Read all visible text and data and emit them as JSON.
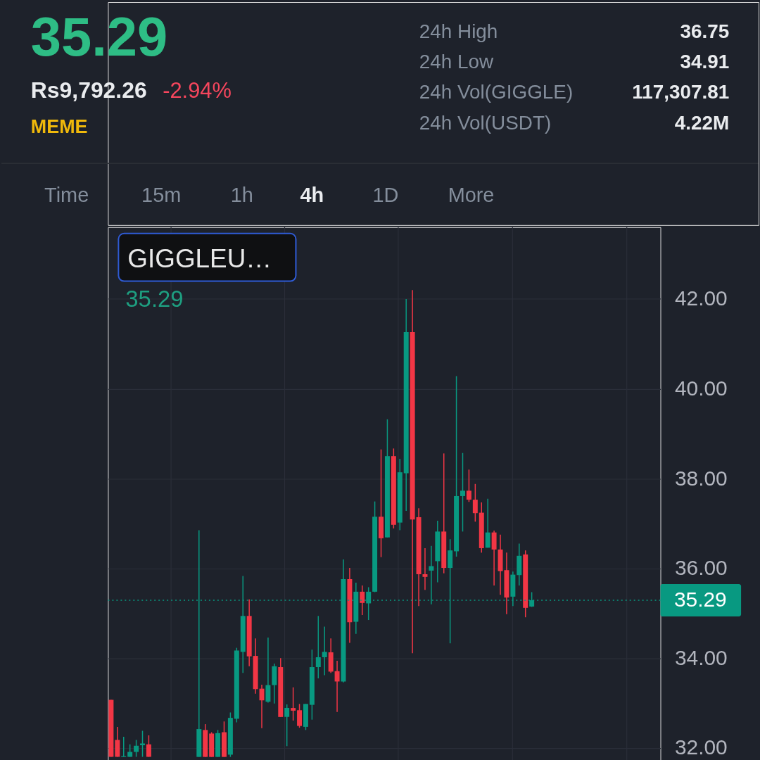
{
  "chart_data": [
    {
      "type": "other",
      "annotations": [
        "35.29",
        "Rs9,792.26",
        "-2.94%",
        "MEME",
        "24h High",
        "36.75",
        "24h Low",
        "34.91",
        "24h Vol(GIGGLE)",
        "117,307.81",
        "24h Vol(USDT)",
        "4.22M",
        "Time",
        "15m",
        "1h",
        "4h",
        "1D",
        "More"
      ]
    },
    {
      "type": "candlestick",
      "title": "GIGGLEU…",
      "annotations": [
        "35.29"
      ],
      "categories": [
        null,
        null,
        null,
        null,
        null,
        null,
        null,
        null,
        null,
        null,
        null,
        null,
        null,
        null,
        null,
        null,
        null,
        null,
        null,
        null,
        null,
        null,
        null,
        null,
        null,
        null,
        null,
        null,
        null,
        null,
        null,
        null,
        null,
        null,
        null,
        null,
        null,
        null,
        null,
        null,
        null,
        null,
        null,
        null,
        null,
        null,
        null,
        null,
        null,
        null,
        null,
        null,
        null,
        null,
        null,
        null,
        null,
        null,
        null,
        null,
        null,
        null,
        null,
        null,
        null,
        null,
        null,
        null,
        null,
        null,
        null,
        null,
        null,
        null,
        null,
        null,
        null,
        null,
        null,
        null,
        null,
        null,
        null,
        null,
        null,
        null,
        null,
        null
      ],
      "ohlc": [
        [
          33.07,
          33.07,
          31.8,
          31.8
        ],
        [
          32.18,
          32.47,
          31.8,
          31.8
        ],
        [
          31.8,
          32.25,
          31.8,
          31.82
        ],
        [
          31.8,
          32.08,
          31.8,
          31.91
        ],
        [
          31.91,
          32.18,
          31.8,
          32.05
        ],
        [
          32.06,
          32.38,
          31.8,
          32.1
        ],
        [
          32.08,
          32.28,
          31.8,
          31.8
        ],
        null,
        null,
        null,
        null,
        null,
        null,
        null,
        [
          31.8,
          36.85,
          31.8,
          32.42
        ],
        [
          32.4,
          32.53,
          31.8,
          31.8
        ],
        [
          32.32,
          32.35,
          31.8,
          31.8
        ],
        [
          31.8,
          32.4,
          31.8,
          32.33
        ],
        [
          32.35,
          32.59,
          31.8,
          31.8
        ],
        [
          31.85,
          32.79,
          31.8,
          32.67
        ],
        [
          32.65,
          34.23,
          32.57,
          34.17
        ],
        [
          34.14,
          35.83,
          33.67,
          34.94
        ],
        [
          34.94,
          35.31,
          33.82,
          34.04
        ],
        [
          34.05,
          34.44,
          33.21,
          33.31
        ],
        [
          33.32,
          33.41,
          32.44,
          33.06
        ],
        [
          33.03,
          34.46,
          33.01,
          33.4
        ],
        [
          33.4,
          33.88,
          32.99,
          33.82
        ],
        [
          33.8,
          34.0,
          32.69,
          32.69
        ],
        [
          32.69,
          32.97,
          32.04,
          32.89
        ],
        [
          32.89,
          33.35,
          32.61,
          32.83
        ],
        [
          32.84,
          32.98,
          32.45,
          32.49
        ],
        [
          32.47,
          32.98,
          32.4,
          32.98
        ],
        [
          32.96,
          34.19,
          32.63,
          33.8
        ],
        [
          33.8,
          34.94,
          33.55,
          34.02
        ],
        [
          34.02,
          34.7,
          33.62,
          34.14
        ],
        [
          34.13,
          34.44,
          33.67,
          33.7
        ],
        [
          33.71,
          33.94,
          32.8,
          33.48
        ],
        [
          33.48,
          36.2,
          33.46,
          35.76
        ],
        [
          35.76,
          36.01,
          34.34,
          34.8
        ],
        [
          34.81,
          35.68,
          34.54,
          35.48
        ],
        [
          35.48,
          35.62,
          34.96,
          35.23
        ],
        [
          35.22,
          35.58,
          34.85,
          35.48
        ],
        [
          35.48,
          37.49,
          35.47,
          37.15
        ],
        [
          37.15,
          38.65,
          36.25,
          36.67
        ],
        [
          36.69,
          39.32,
          36.69,
          38.5
        ],
        [
          38.5,
          38.67,
          36.89,
          36.97
        ],
        [
          37.02,
          38.44,
          36.85,
          38.14
        ],
        [
          38.12,
          42.0,
          37.28,
          41.26
        ],
        [
          41.26,
          42.2,
          34.11,
          37.09
        ],
        [
          37.14,
          37.34,
          35.16,
          35.87
        ],
        [
          35.87,
          36.45,
          35.52,
          35.81
        ],
        [
          35.95,
          36.5,
          35.2,
          36.05
        ],
        [
          36.16,
          37.06,
          35.69,
          36.82
        ],
        [
          36.82,
          38.56,
          35.89,
          36.01
        ],
        [
          36.01,
          36.65,
          34.33,
          36.4
        ],
        [
          36.38,
          40.28,
          36.26,
          37.61
        ],
        [
          37.61,
          38.57,
          36.82,
          37.73
        ],
        [
          37.73,
          38.2,
          37.48,
          37.53
        ],
        [
          37.53,
          37.88,
          37.04,
          37.23
        ],
        [
          37.24,
          37.47,
          36.35,
          36.45
        ],
        [
          36.46,
          37.55,
          36.46,
          36.8
        ],
        [
          36.8,
          36.84,
          35.62,
          36.42
        ],
        [
          36.42,
          36.75,
          35.41,
          35.94
        ],
        [
          35.96,
          36.35,
          34.98,
          35.35
        ],
        [
          35.37,
          35.93,
          35.16,
          35.86
        ],
        [
          35.85,
          36.55,
          35.62,
          36.28
        ],
        [
          36.31,
          36.4,
          34.91,
          35.12
        ],
        [
          35.15,
          35.47,
          35.14,
          35.29
        ],
        null,
        null,
        null,
        null,
        null,
        null,
        null,
        null,
        null,
        null,
        null,
        null,
        null,
        null,
        null,
        null,
        null,
        null,
        null,
        null
      ],
      "colors": [
        "#f23645",
        "#f23645",
        "#089981",
        "#089981",
        "#089981",
        "#089981",
        "#f23645",
        null,
        null,
        null,
        null,
        null,
        null,
        null,
        "#089981",
        "#f23645",
        "#f23645",
        "#089981",
        "#f23645",
        "#089981",
        "#089981",
        "#089981",
        "#f23645",
        "#f23645",
        "#f23645",
        "#089981",
        "#089981",
        "#f23645",
        "#089981",
        "#f23645",
        "#f23645",
        "#089981",
        "#089981",
        "#089981",
        "#089981",
        "#f23645",
        "#f23645",
        "#089981",
        "#f23645",
        "#089981",
        "#f23645",
        "#089981",
        "#089981",
        "#f23645",
        "#089981",
        "#f23645",
        "#089981",
        "#089981",
        "#f23645",
        "#f23645",
        "#f23645",
        "#089981",
        "#089981",
        "#f23645",
        "#089981",
        "#089981",
        "#089981",
        "#f23645",
        "#f23645",
        "#f23645",
        "#089981",
        "#f23645",
        "#f23645",
        "#f23645",
        "#089981",
        "#089981",
        "#f23645",
        "#089981",
        null,
        null,
        null,
        null,
        null,
        null,
        null,
        null,
        null,
        null,
        null,
        null,
        null,
        null,
        null,
        null,
        null,
        null,
        null,
        null
      ],
      "ylim": [
        31.7,
        43.6
      ],
      "yticks": [
        {
          "value": 32,
          "label": "32.00"
        },
        {
          "value": 34,
          "label": "34.00"
        },
        {
          "value": 36,
          "label": "36.00"
        },
        {
          "value": 38,
          "label": "38.00"
        },
        {
          "value": 40,
          "label": "40.00"
        },
        {
          "value": 42,
          "label": "42.00"
        }
      ],
      "grid": true,
      "ref_lines": [
        {
          "axis": "y",
          "value": 35.29,
          "label": "35.29",
          "color": "#089981",
          "line_style": "dotted"
        }
      ]
    }
  ]
}
